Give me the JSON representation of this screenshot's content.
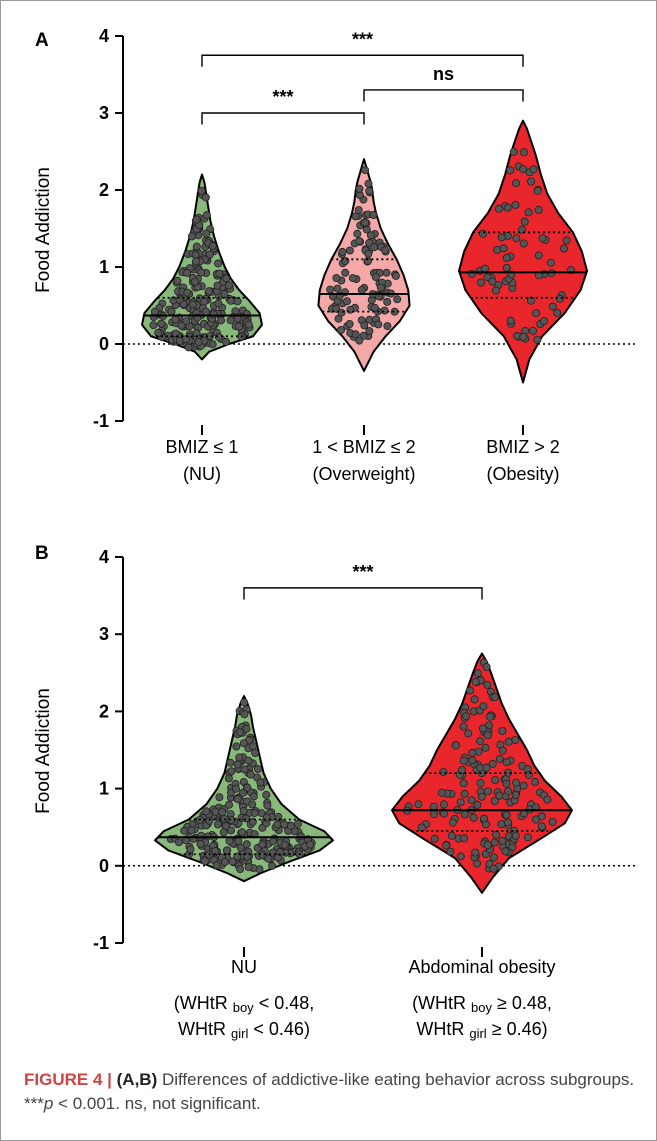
{
  "panels": [
    {
      "label": "A",
      "ylabel": "Food Addiction",
      "ylim": [
        -1,
        4
      ],
      "yticks": [
        "-1",
        "0",
        "1",
        "2",
        "3",
        "4"
      ],
      "groups": [
        {
          "line1": "BMIZ ≤ 1",
          "line2": "(NU)",
          "color": "#88b87a",
          "median": 0.37,
          "q1": 0.1,
          "q3": 0.6
        },
        {
          "line1": "1 < BMIZ ≤ 2",
          "line2": "(Overweight)",
          "color": "#f4a8a8",
          "median": 0.65,
          "q1": 0.42,
          "q3": 1.1
        },
        {
          "line1": "BMIZ > 2",
          "line2": "(Obesity)",
          "color": "#e8262c",
          "median": 0.93,
          "q1": 0.6,
          "q3": 1.45
        }
      ],
      "brackets": [
        {
          "from": 0,
          "to": 2,
          "label": "***"
        },
        {
          "from": 1,
          "to": 2,
          "label": "ns"
        },
        {
          "from": 0,
          "to": 1,
          "label": "***"
        }
      ]
    },
    {
      "label": "B",
      "ylabel": "Food Addiction",
      "ylim": [
        -1,
        4
      ],
      "yticks": [
        "-1",
        "0",
        "1",
        "2",
        "3",
        "4"
      ],
      "groups": [
        {
          "line1": "NU",
          "line2": "",
          "color": "#88b87a",
          "median": 0.37,
          "q1": 0.15,
          "q3": 0.6
        },
        {
          "line1": "Abdominal obesity",
          "line2": "",
          "color": "#e8262c",
          "median": 0.72,
          "q1": 0.45,
          "q3": 1.2
        }
      ],
      "sublabels": [
        {
          "a1": "(WHtR ",
          "a2": "boy",
          "a3": " < 0.48,",
          "b1": "WHtR ",
          "b2": "girl",
          "b3": " < 0.46)"
        },
        {
          "a1": "(WHtR ",
          "a2": "boy",
          "a3": " ≥ 0.48,",
          "b1": "WHtR ",
          "b2": "girl",
          "b3": " ≥ 0.46)"
        }
      ],
      "brackets": [
        {
          "from": 0,
          "to": 1,
          "label": "***"
        }
      ]
    }
  ],
  "chart_data": [
    {
      "type": "violin",
      "title": "A",
      "ylabel": "Food Addiction",
      "ylim": [
        -1,
        4
      ],
      "categories": [
        "BMIZ ≤ 1 (NU)",
        "1 < BMIZ ≤ 2 (Overweight)",
        "BMIZ > 2 (Obesity)"
      ],
      "median": [
        0.37,
        0.65,
        0.93
      ],
      "q1": [
        0.1,
        0.42,
        0.6
      ],
      "q3": [
        0.6,
        1.1,
        1.45
      ],
      "range": [
        [
          -0.2,
          2.2
        ],
        [
          -0.35,
          2.4
        ],
        [
          -0.5,
          2.9
        ]
      ],
      "significance": [
        "***",
        "ns",
        "***"
      ]
    },
    {
      "type": "violin",
      "title": "B",
      "ylabel": "Food Addiction",
      "ylim": [
        -1,
        4
      ],
      "categories": [
        "NU",
        "Abdominal obesity"
      ],
      "median": [
        0.37,
        0.72
      ],
      "q1": [
        0.15,
        0.45
      ],
      "q3": [
        0.6,
        1.2
      ],
      "range": [
        [
          -0.2,
          2.2
        ],
        [
          -0.35,
          2.75
        ]
      ],
      "significance": [
        "***"
      ]
    }
  ],
  "caption": {
    "fig": "FIGURE 4 |",
    "panels": "(A,B)",
    "text": " Differences of addictive-like eating behavior across subgroups. ***",
    "p": "p",
    "rest": " < 0.001. ns, not significant."
  }
}
